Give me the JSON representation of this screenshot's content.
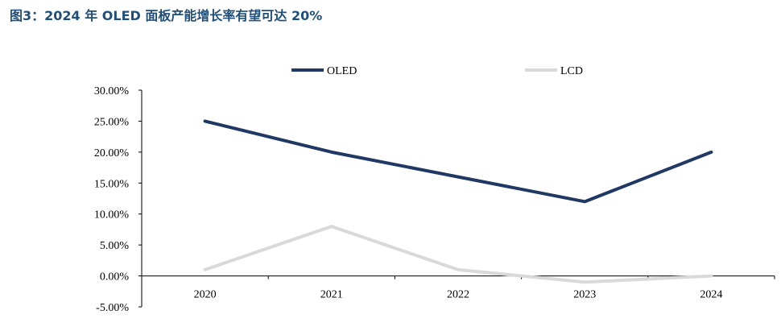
{
  "title": "图3：2024 年 OLED 面板产能增长率有望可达 20%",
  "chart_data": {
    "type": "line",
    "categories": [
      "2020",
      "2021",
      "2022",
      "2023",
      "2024"
    ],
    "series": [
      {
        "name": "OLED",
        "color": "#1f3864",
        "values": [
          25,
          20,
          16,
          12,
          20
        ]
      },
      {
        "name": "LCD",
        "color": "#d9d9d9",
        "values": [
          1,
          8,
          1,
          -1,
          0
        ]
      }
    ],
    "yticks": [
      "30.00%",
      "25.00%",
      "20.00%",
      "15.00%",
      "10.00%",
      "5.00%",
      "0.00%",
      "-5.00%"
    ],
    "ylim": [
      -5,
      30
    ],
    "legend_position": "top-center",
    "grid": false
  }
}
